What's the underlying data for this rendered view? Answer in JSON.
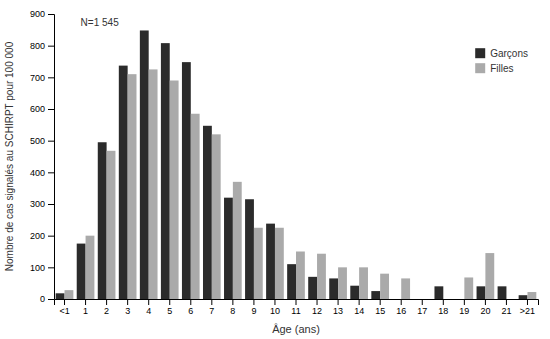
{
  "chart_data": {
    "type": "bar",
    "xlabel": "Âge (ans)",
    "ylabel": "Nombre de cas signalés au SCHIRPT pour 100 000",
    "annotation": "N=1 545",
    "categories": [
      "<1",
      "1",
      "2",
      "3",
      "4",
      "5",
      "6",
      "7",
      "8",
      "9",
      "10",
      "11",
      "12",
      "13",
      "14",
      "15",
      "16",
      "17",
      "18",
      "19",
      "20",
      "21",
      ">21"
    ],
    "series": [
      {
        "name": "Garçons",
        "color": "#2b2b2b",
        "values": [
          18,
          175,
          495,
          737,
          848,
          808,
          748,
          547,
          320,
          315,
          238,
          110,
          70,
          65,
          42,
          25,
          0,
          0,
          40,
          0,
          40,
          40,
          12
        ]
      },
      {
        "name": "Filles",
        "color": "#aaaaaa",
        "values": [
          28,
          200,
          468,
          710,
          725,
          690,
          585,
          520,
          370,
          225,
          225,
          150,
          143,
          100,
          100,
          80,
          65,
          0,
          0,
          68,
          145,
          0,
          22
        ]
      }
    ],
    "ylim": [
      0,
      900
    ],
    "yticks": [
      0,
      100,
      200,
      300,
      400,
      500,
      600,
      700,
      800,
      900
    ],
    "grid": false,
    "legend": "upper right"
  }
}
